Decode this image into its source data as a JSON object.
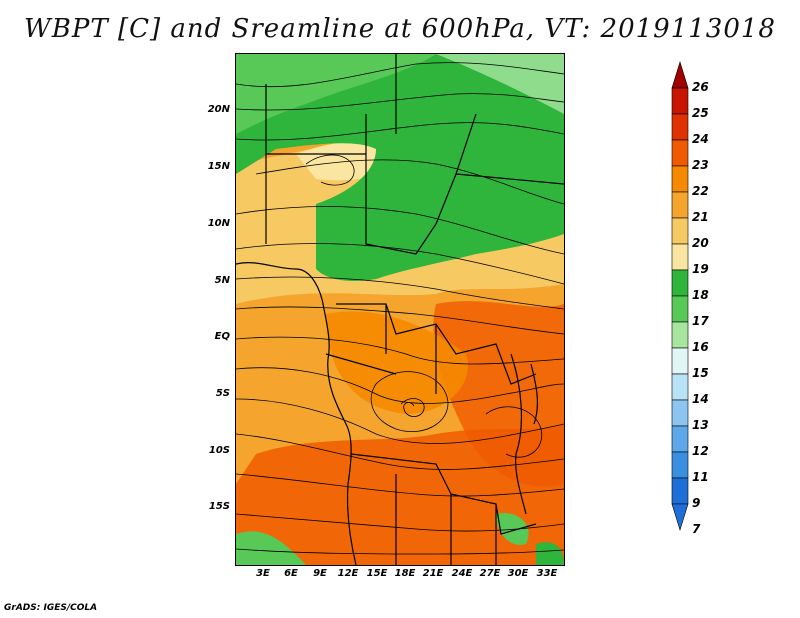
{
  "title": "WBPT [C] and Sreamline at 600hPa, VT: 2019113018",
  "credit": "GrADS: IGES/COLA",
  "map": {
    "lat_labels": [
      "20N",
      "15N",
      "10N",
      "5N",
      "EQ",
      "5S",
      "10S",
      "15S"
    ],
    "lon_labels": [
      "3E",
      "6E",
      "9E",
      "12E",
      "15E",
      "18E",
      "21E",
      "24E",
      "27E",
      "30E",
      "33E"
    ]
  },
  "colorbar": {
    "levels": [
      "26",
      "25",
      "24",
      "23",
      "22",
      "21",
      "20",
      "19",
      "18",
      "17",
      "16",
      "15",
      "14",
      "13",
      "12",
      "11",
      "9",
      "7"
    ],
    "colors": [
      "#a00000",
      "#c81400",
      "#e03200",
      "#f05a00",
      "#f58a00",
      "#f5a52d",
      "#f7c963",
      "#fbe6a1",
      "#2fb43c",
      "#58c857",
      "#a8e6a0",
      "#e2f7f5",
      "#b8e3f7",
      "#8cc6f0",
      "#5ca8ea",
      "#3a8fe0",
      "#1e6fd8",
      "#1e6fd8"
    ]
  }
}
